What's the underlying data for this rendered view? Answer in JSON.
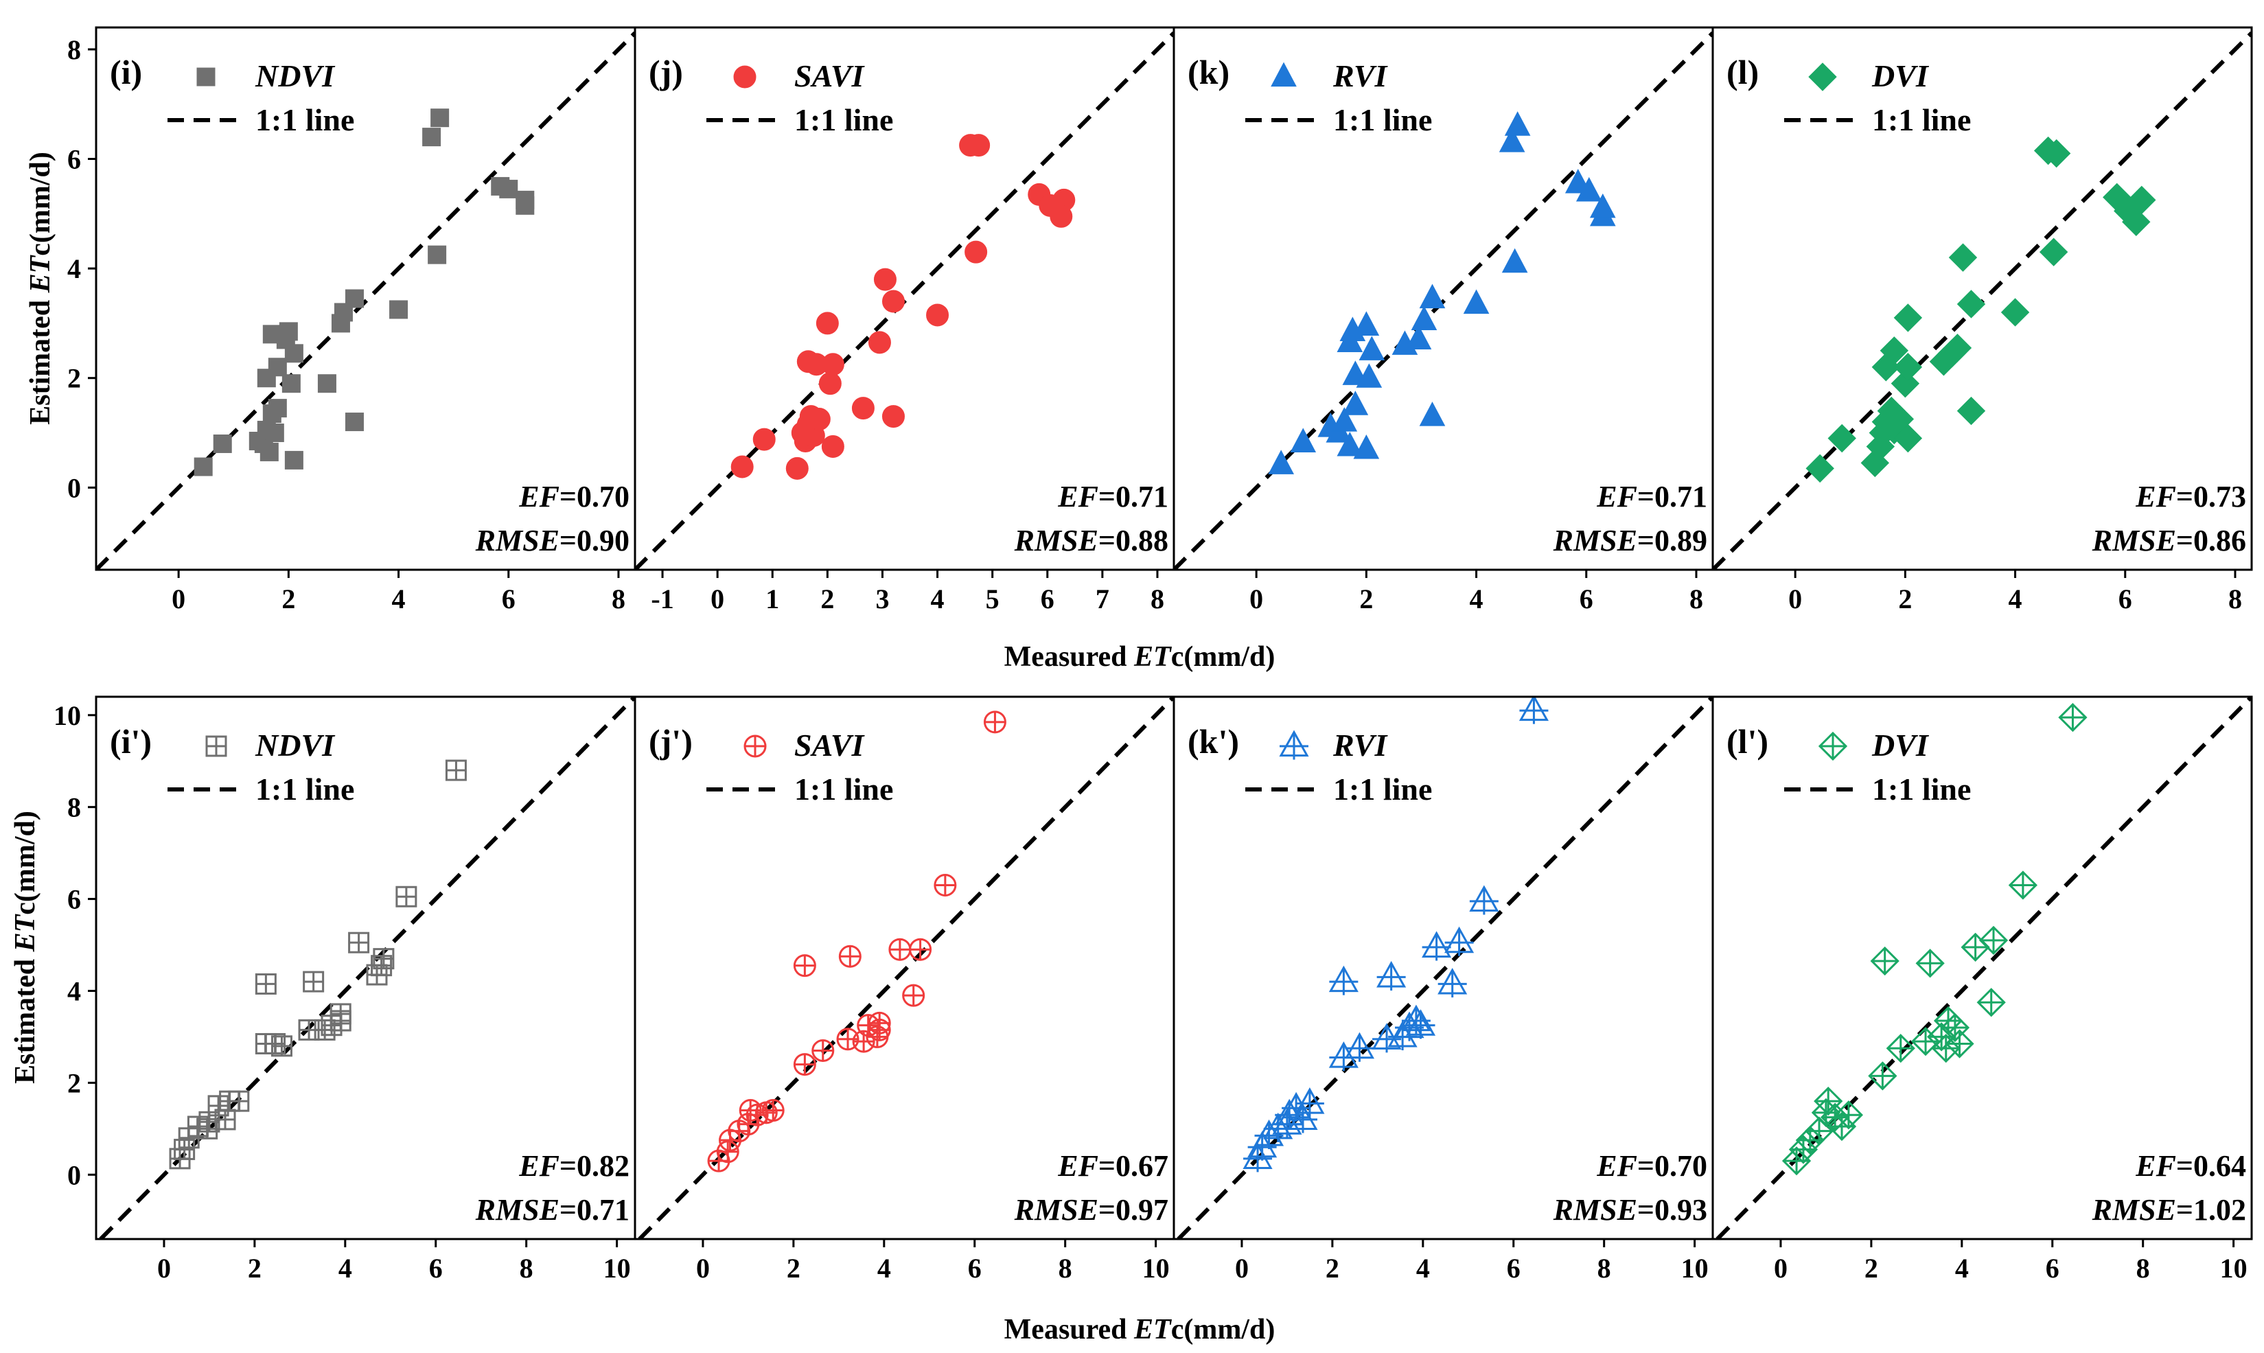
{
  "x_axis_label": {
    "prefix": "Measured ",
    "var": "ET",
    "suffix": "c(mm/d)"
  },
  "y_axis_label": {
    "prefix": "Estimated ",
    "var": "ET",
    "suffix": "c(mm/d)"
  },
  "legend_line_label": "1:1 line",
  "stat_names": {
    "ef": "EF",
    "rmse": "RMSE"
  },
  "colors": {
    "NDVI": "#707070",
    "SAVI": "#f03c3c",
    "RVI": "#1f78d8",
    "DVI": "#1aa865",
    "line": "#000000"
  },
  "chart_data": [
    {
      "type": "scatter",
      "panel": "(i)",
      "series_name": "NDVI",
      "marker": "square-filled",
      "color": "#707070",
      "EF": "0.70",
      "RMSE": "0.90",
      "xlim": [
        -1.5,
        8.3
      ],
      "ylim": [
        -1.5,
        8.4
      ],
      "xticks": [
        0,
        2,
        4,
        6,
        8
      ],
      "yticks": [
        0,
        2,
        4,
        6,
        8
      ],
      "points": [
        [
          0.45,
          0.38
        ],
        [
          0.8,
          0.8
        ],
        [
          1.45,
          0.85
        ],
        [
          1.55,
          0.8
        ],
        [
          1.6,
          1.05
        ],
        [
          1.65,
          0.65
        ],
        [
          1.7,
          1.35
        ],
        [
          1.75,
          1.0
        ],
        [
          1.8,
          1.45
        ],
        [
          1.6,
          2.0
        ],
        [
          1.7,
          2.8
        ],
        [
          1.8,
          2.2
        ],
        [
          1.95,
          2.7
        ],
        [
          2.0,
          2.85
        ],
        [
          2.05,
          1.9
        ],
        [
          2.1,
          2.45
        ],
        [
          2.1,
          0.5
        ],
        [
          2.7,
          1.9
        ],
        [
          2.95,
          3.0
        ],
        [
          3.0,
          3.2
        ],
        [
          3.2,
          3.45
        ],
        [
          3.2,
          1.2
        ],
        [
          4.0,
          3.25
        ],
        [
          4.7,
          4.25
        ],
        [
          4.6,
          6.4
        ],
        [
          4.75,
          6.75
        ],
        [
          5.85,
          5.5
        ],
        [
          6.0,
          5.45
        ],
        [
          6.3,
          5.15
        ],
        [
          6.3,
          5.25
        ]
      ]
    },
    {
      "type": "scatter",
      "panel": "(j)",
      "series_name": "SAVI",
      "marker": "circle-filled",
      "color": "#f03c3c",
      "EF": "0.71",
      "RMSE": "0.88",
      "xlim": [
        -1.5,
        8.3
      ],
      "ylim": [
        -1.5,
        8.4
      ],
      "xticks": [
        -1,
        0,
        1,
        2,
        3,
        4,
        5,
        6,
        7,
        8
      ],
      "yticks": [],
      "points": [
        [
          0.45,
          0.38
        ],
        [
          0.85,
          0.88
        ],
        [
          1.45,
          0.35
        ],
        [
          1.55,
          1.0
        ],
        [
          1.6,
          0.85
        ],
        [
          1.65,
          1.15
        ],
        [
          1.7,
          1.3
        ],
        [
          1.75,
          0.95
        ],
        [
          1.85,
          1.25
        ],
        [
          1.65,
          2.3
        ],
        [
          1.8,
          2.25
        ],
        [
          2.0,
          3.0
        ],
        [
          2.05,
          1.9
        ],
        [
          2.1,
          2.25
        ],
        [
          2.1,
          0.75
        ],
        [
          2.65,
          1.45
        ],
        [
          2.95,
          2.65
        ],
        [
          3.05,
          3.8
        ],
        [
          3.2,
          3.4
        ],
        [
          3.2,
          1.3
        ],
        [
          4.0,
          3.15
        ],
        [
          4.7,
          4.3
        ],
        [
          4.6,
          6.25
        ],
        [
          4.75,
          6.25
        ],
        [
          5.85,
          5.35
        ],
        [
          6.05,
          5.15
        ],
        [
          6.3,
          5.25
        ],
        [
          6.25,
          4.95
        ]
      ]
    },
    {
      "type": "scatter",
      "panel": "(k)",
      "series_name": "RVI",
      "marker": "triangle-filled",
      "color": "#1f78d8",
      "EF": "0.71",
      "RMSE": "0.89",
      "xlim": [
        -1.5,
        8.3
      ],
      "ylim": [
        -1.5,
        8.4
      ],
      "xticks": [
        0,
        2,
        4,
        6,
        8
      ],
      "yticks": [],
      "points": [
        [
          0.45,
          0.42
        ],
        [
          0.85,
          0.82
        ],
        [
          1.35,
          1.1
        ],
        [
          1.5,
          1.0
        ],
        [
          1.6,
          1.2
        ],
        [
          1.7,
          0.75
        ],
        [
          1.8,
          1.5
        ],
        [
          1.8,
          2.05
        ],
        [
          2.0,
          0.7
        ],
        [
          2.05,
          2.0
        ],
        [
          2.1,
          2.5
        ],
        [
          1.7,
          2.65
        ],
        [
          1.75,
          2.85
        ],
        [
          2.0,
          2.95
        ],
        [
          2.7,
          2.6
        ],
        [
          2.95,
          2.7
        ],
        [
          3.05,
          3.05
        ],
        [
          3.2,
          3.45
        ],
        [
          3.2,
          1.3
        ],
        [
          4.0,
          3.35
        ],
        [
          4.7,
          4.1
        ],
        [
          4.65,
          6.3
        ],
        [
          4.75,
          6.6
        ],
        [
          5.85,
          5.55
        ],
        [
          6.05,
          5.4
        ],
        [
          6.3,
          4.95
        ],
        [
          6.3,
          5.1
        ]
      ]
    },
    {
      "type": "scatter",
      "panel": "(l)",
      "series_name": "DVI",
      "marker": "diamond-filled",
      "color": "#1aa865",
      "EF": "0.73",
      "RMSE": "0.86",
      "xlim": [
        -1.5,
        8.3
      ],
      "ylim": [
        -1.5,
        8.4
      ],
      "xticks": [
        0,
        2,
        4,
        6,
        8
      ],
      "yticks": [],
      "points": [
        [
          0.45,
          0.35
        ],
        [
          0.85,
          0.9
        ],
        [
          1.45,
          0.45
        ],
        [
          1.55,
          0.75
        ],
        [
          1.6,
          1.0
        ],
        [
          1.65,
          1.2
        ],
        [
          1.75,
          1.4
        ],
        [
          1.8,
          1.05
        ],
        [
          1.9,
          1.25
        ],
        [
          2.05,
          0.9
        ],
        [
          1.65,
          2.2
        ],
        [
          1.8,
          2.5
        ],
        [
          2.0,
          1.9
        ],
        [
          2.05,
          2.2
        ],
        [
          2.05,
          3.1
        ],
        [
          2.7,
          2.3
        ],
        [
          2.85,
          2.45
        ],
        [
          2.95,
          2.55
        ],
        [
          3.05,
          4.2
        ],
        [
          3.2,
          3.35
        ],
        [
          3.2,
          1.4
        ],
        [
          4.0,
          3.2
        ],
        [
          4.7,
          4.3
        ],
        [
          4.6,
          6.15
        ],
        [
          4.75,
          6.1
        ],
        [
          5.85,
          5.3
        ],
        [
          6.05,
          5.05
        ],
        [
          6.2,
          4.85
        ],
        [
          6.3,
          5.25
        ]
      ]
    },
    {
      "type": "scatter",
      "panel": "(i')",
      "series_name": "NDVI",
      "marker": "square-crossed",
      "color": "#707070",
      "EF": "0.82",
      "RMSE": "0.71",
      "xlim": [
        -1.5,
        10.4
      ],
      "ylim": [
        -1.4,
        10.4
      ],
      "xticks": [
        0,
        2,
        4,
        6,
        8,
        10
      ],
      "yticks": [
        0,
        2,
        4,
        6,
        8,
        10
      ],
      "points": [
        [
          0.35,
          0.35
        ],
        [
          0.45,
          0.55
        ],
        [
          0.55,
          0.8
        ],
        [
          0.75,
          1.05
        ],
        [
          0.95,
          1.0
        ],
        [
          1.0,
          1.15
        ],
        [
          1.2,
          1.5
        ],
        [
          1.35,
          1.2
        ],
        [
          1.45,
          1.6
        ],
        [
          1.65,
          1.6
        ],
        [
          2.25,
          2.85
        ],
        [
          2.45,
          2.85
        ],
        [
          2.6,
          2.8
        ],
        [
          2.25,
          4.15
        ],
        [
          3.2,
          3.15
        ],
        [
          3.3,
          4.2
        ],
        [
          3.55,
          3.15
        ],
        [
          3.7,
          3.25
        ],
        [
          3.9,
          3.35
        ],
        [
          3.9,
          3.5
        ],
        [
          4.3,
          5.05
        ],
        [
          4.7,
          4.35
        ],
        [
          4.8,
          4.55
        ],
        [
          4.85,
          4.7
        ],
        [
          5.35,
          6.05
        ],
        [
          6.45,
          8.8
        ]
      ]
    },
    {
      "type": "scatter",
      "panel": "(j')",
      "series_name": "SAVI",
      "marker": "circle-crossed",
      "color": "#f03c3c",
      "EF": "0.67",
      "RMSE": "0.97",
      "xlim": [
        -1.5,
        10.4
      ],
      "ylim": [
        -1.4,
        10.4
      ],
      "xticks": [
        0,
        2,
        4,
        6,
        8,
        10
      ],
      "yticks": [],
      "points": [
        [
          0.35,
          0.3
        ],
        [
          0.55,
          0.5
        ],
        [
          0.6,
          0.75
        ],
        [
          0.8,
          0.95
        ],
        [
          1.0,
          1.1
        ],
        [
          1.05,
          1.4
        ],
        [
          1.2,
          1.3
        ],
        [
          1.4,
          1.35
        ],
        [
          1.55,
          1.4
        ],
        [
          2.25,
          2.4
        ],
        [
          2.25,
          4.55
        ],
        [
          2.65,
          2.7
        ],
        [
          3.2,
          2.95
        ],
        [
          3.25,
          4.75
        ],
        [
          3.55,
          2.9
        ],
        [
          3.65,
          3.25
        ],
        [
          3.85,
          3.0
        ],
        [
          3.9,
          3.15
        ],
        [
          3.9,
          3.3
        ],
        [
          4.35,
          4.9
        ],
        [
          4.65,
          3.9
        ],
        [
          4.8,
          4.9
        ],
        [
          5.35,
          6.3
        ],
        [
          6.45,
          9.85
        ]
      ]
    },
    {
      "type": "scatter",
      "panel": "(k')",
      "series_name": "RVI",
      "marker": "triangle-crossed",
      "color": "#1f78d8",
      "EF": "0.70",
      "RMSE": "0.93",
      "xlim": [
        -1.5,
        10.4
      ],
      "ylim": [
        -1.4,
        10.4
      ],
      "xticks": [
        0,
        2,
        4,
        6,
        8,
        10
      ],
      "yticks": [],
      "points": [
        [
          0.35,
          0.35
        ],
        [
          0.45,
          0.6
        ],
        [
          0.6,
          0.85
        ],
        [
          0.8,
          1.0
        ],
        [
          1.0,
          1.1
        ],
        [
          1.05,
          1.3
        ],
        [
          1.2,
          1.45
        ],
        [
          1.35,
          1.2
        ],
        [
          1.5,
          1.55
        ],
        [
          2.25,
          2.55
        ],
        [
          2.6,
          2.75
        ],
        [
          2.25,
          4.2
        ],
        [
          3.2,
          2.95
        ],
        [
          3.3,
          4.3
        ],
        [
          3.55,
          3.0
        ],
        [
          3.7,
          3.2
        ],
        [
          3.85,
          3.35
        ],
        [
          3.95,
          3.25
        ],
        [
          4.3,
          4.95
        ],
        [
          4.65,
          4.15
        ],
        [
          4.8,
          5.05
        ],
        [
          5.35,
          5.95
        ],
        [
          6.45,
          10.1
        ]
      ]
    },
    {
      "type": "scatter",
      "panel": "(l')",
      "series_name": "DVI",
      "marker": "diamond-crossed",
      "color": "#1aa865",
      "EF": "0.64",
      "RMSE": "1.02",
      "xlim": [
        -1.5,
        10.4
      ],
      "ylim": [
        -1.4,
        10.4
      ],
      "xticks": [
        0,
        2,
        4,
        6,
        8,
        10
      ],
      "yticks": [],
      "points": [
        [
          0.35,
          0.3
        ],
        [
          0.5,
          0.55
        ],
        [
          0.65,
          0.75
        ],
        [
          0.85,
          0.95
        ],
        [
          1.0,
          1.35
        ],
        [
          1.05,
          1.6
        ],
        [
          1.2,
          1.25
        ],
        [
          1.35,
          1.05
        ],
        [
          1.5,
          1.3
        ],
        [
          2.25,
          2.15
        ],
        [
          2.3,
          4.65
        ],
        [
          2.65,
          2.75
        ],
        [
          3.2,
          2.9
        ],
        [
          3.3,
          4.6
        ],
        [
          3.55,
          3.0
        ],
        [
          3.65,
          2.75
        ],
        [
          3.7,
          3.35
        ],
        [
          3.85,
          3.2
        ],
        [
          3.95,
          2.85
        ],
        [
          4.3,
          4.95
        ],
        [
          4.65,
          3.75
        ],
        [
          4.7,
          5.1
        ],
        [
          5.35,
          6.3
        ],
        [
          6.45,
          9.95
        ]
      ]
    }
  ]
}
